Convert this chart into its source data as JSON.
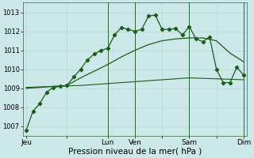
{
  "bg_color": "#cce8e8",
  "grid_color": "#b8d8d8",
  "line_color_main": "#1a5c1a",
  "line_color_med": "#2d7a2d",
  "xlabel": "Pression niveau de la mer( hPa )",
  "xlabel_fontsize": 7.5,
  "ylabel_ticks": [
    1007,
    1008,
    1009,
    1010,
    1011,
    1012,
    1013
  ],
  "ytick_fontsize": 6,
  "xtick_labels": [
    "Jeu",
    "",
    "Lun",
    "Ven",
    "",
    "Sam",
    "",
    "Dim"
  ],
  "xtick_positions": [
    0,
    12,
    24,
    32,
    40,
    48,
    56,
    64
  ],
  "vlines_x": [
    24,
    32,
    48,
    64
  ],
  "series1_x": [
    0,
    2,
    4,
    6,
    8,
    10,
    12,
    14,
    16,
    18,
    20,
    22,
    24,
    26,
    28,
    30,
    32,
    34,
    36,
    38,
    40,
    42,
    44,
    46,
    48,
    50,
    52,
    54,
    56,
    58,
    60,
    62,
    64
  ],
  "series1_y": [
    1006.8,
    1007.8,
    1008.2,
    1008.8,
    1009.05,
    1009.1,
    1009.15,
    1009.6,
    1010.0,
    1010.5,
    1010.8,
    1011.0,
    1011.1,
    1011.8,
    1012.2,
    1012.1,
    1012.0,
    1012.1,
    1012.8,
    1012.85,
    1012.1,
    1012.1,
    1012.15,
    1011.8,
    1012.25,
    1011.6,
    1011.45,
    1011.7,
    1010.0,
    1009.3,
    1009.3,
    1010.1,
    1009.7
  ],
  "series2_x": [
    0,
    4,
    8,
    12,
    16,
    20,
    24,
    28,
    32,
    36,
    40,
    44,
    48,
    52,
    56,
    60,
    64
  ],
  "series2_y": [
    1009.0,
    1009.05,
    1009.1,
    1009.15,
    1009.55,
    1009.9,
    1010.25,
    1010.65,
    1011.0,
    1011.3,
    1011.5,
    1011.6,
    1011.65,
    1011.65,
    1011.5,
    1010.85,
    1010.4
  ],
  "series3_x": [
    0,
    8,
    16,
    24,
    32,
    40,
    48,
    56,
    64
  ],
  "series3_y": [
    1009.05,
    1009.1,
    1009.15,
    1009.25,
    1009.35,
    1009.45,
    1009.55,
    1009.5,
    1009.45
  ],
  "ylim": [
    1006.5,
    1013.5
  ],
  "xlim": [
    -1,
    65
  ]
}
